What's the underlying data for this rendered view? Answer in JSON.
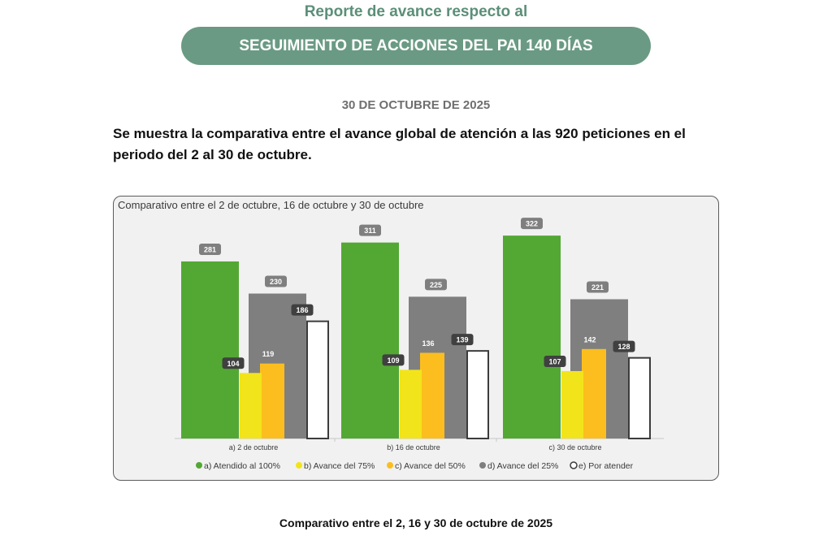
{
  "header": {
    "subtitle": "Reporte de avance respecto al",
    "banner": "SEGUIMIENTO DE ACCIONES DEL PAI 140 DÍAS",
    "date": "30 DE OCTUBRE DE 2025",
    "intro": "Se muestra la comparativa entre el avance global de atención a las 920 peticiones en el periodo del 2 al 30 de octubre."
  },
  "caption": "Comparativo entre el 2, 16 y 30 de octubre de 2025",
  "colors": {
    "atendido": "#53a834",
    "avance75": "#f2e41a",
    "avance50": "#fbbe1e",
    "avance25": "#7f7f7f",
    "por_atender_fill": "#ffffff",
    "por_atender_stroke": "#3c3c3c",
    "label_light": "#7f7f7f",
    "label_dark": "#404040"
  },
  "chart_data": {
    "type": "bar",
    "title": "Comparativo entre el 2 de octubre, 16 de octubre y 30 de octubre",
    "categories": [
      "a) 2 de octubre",
      "b) 16 de octubre",
      "c) 30 de octubre"
    ],
    "series": [
      {
        "name": "a) Atendido al 100%",
        "key": "atendido",
        "values": [
          281,
          311,
          322
        ]
      },
      {
        "name": "b) Avance del 75%",
        "key": "avance75",
        "values": [
          104,
          109,
          107
        ]
      },
      {
        "name": "c) Avance del 50%",
        "key": "avance50",
        "values": [
          119,
          136,
          142
        ]
      },
      {
        "name": "d) Avance del 25%",
        "key": "avance25",
        "values": [
          230,
          225,
          221
        ]
      },
      {
        "name": "e) Por atender",
        "key": "por_atender",
        "values": [
          186,
          139,
          128
        ]
      }
    ],
    "ylim": [
      0,
      350
    ],
    "xlabel": "",
    "ylabel": "",
    "legend": "bottom",
    "grid": false
  }
}
